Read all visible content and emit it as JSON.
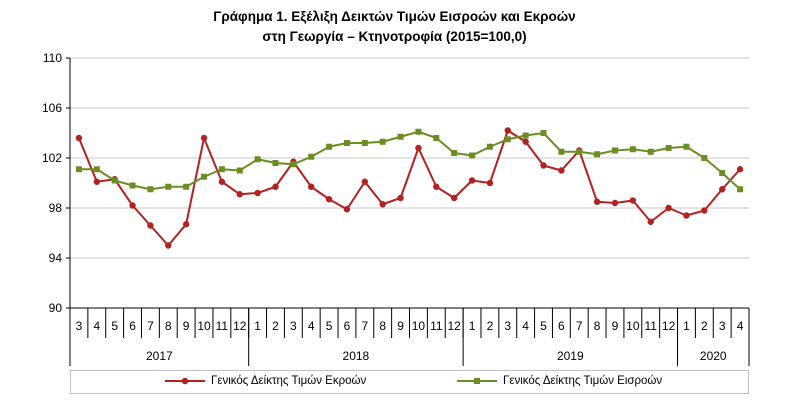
{
  "title_line1": "Γράφημα 1. Εξέλιξη Δεικτών Τιμών Εισροών και Εκροών",
  "title_line2": "στη Γεωργία – Κτηνοτροφία (2015=100,0)",
  "chart_data": {
    "type": "line",
    "ylim": [
      90,
      110
    ],
    "y_ticks": [
      90,
      94,
      98,
      102,
      106,
      110
    ],
    "grid": true,
    "legend_position": "bottom",
    "categories": [
      "3",
      "4",
      "5",
      "6",
      "7",
      "8",
      "9",
      "10",
      "11",
      "12",
      "1",
      "2",
      "3",
      "4",
      "5",
      "6",
      "7",
      "8",
      "9",
      "10",
      "11",
      "12",
      "1",
      "2",
      "3",
      "4",
      "5",
      "6",
      "7",
      "8",
      "9",
      "10",
      "11",
      "12",
      "1",
      "2",
      "3",
      "4"
    ],
    "year_groups": [
      {
        "label": "2017",
        "count": 10
      },
      {
        "label": "2018",
        "count": 12
      },
      {
        "label": "2019",
        "count": 12
      },
      {
        "label": "2020",
        "count": 4
      }
    ],
    "series": [
      {
        "name": "Γενικός Δείκτης Τιμών Εκροών",
        "color": "#B22222",
        "marker": "circle",
        "values": [
          103.6,
          100.1,
          100.3,
          98.2,
          96.6,
          95.0,
          96.7,
          103.6,
          100.1,
          99.1,
          99.2,
          99.7,
          101.7,
          99.7,
          98.7,
          97.9,
          100.1,
          98.3,
          98.8,
          102.8,
          99.7,
          98.8,
          100.2,
          100.0,
          104.2,
          103.3,
          101.4,
          101.0,
          102.6,
          98.5,
          98.4,
          98.6,
          96.9,
          98.0,
          97.4,
          97.8,
          99.5,
          101.1
        ]
      },
      {
        "name": "Γενικός Δείκτης Τιμών Εισροών",
        "color": "#6B8E23",
        "marker": "square",
        "values": [
          101.1,
          101.1,
          100.2,
          99.8,
          99.5,
          99.7,
          99.7,
          100.5,
          101.1,
          101.0,
          101.9,
          101.6,
          101.5,
          102.1,
          102.9,
          103.2,
          103.2,
          103.3,
          103.7,
          104.1,
          103.6,
          102.4,
          102.2,
          102.9,
          103.5,
          103.8,
          104.0,
          102.5,
          102.5,
          102.3,
          102.6,
          102.7,
          102.5,
          102.8,
          102.9,
          102.0,
          100.8,
          99.5
        ]
      }
    ]
  }
}
